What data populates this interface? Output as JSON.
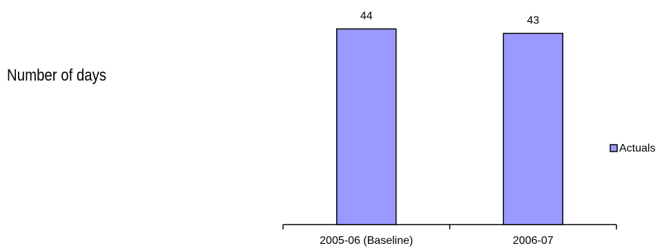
{
  "chart_data": {
    "type": "bar",
    "title": "",
    "xlabel": "",
    "ylabel": "Number of days",
    "categories": [
      "2005-06 (Baseline)",
      "2006-07"
    ],
    "series": [
      {
        "name": "Actuals",
        "values": [
          44,
          43
        ],
        "color": "#9999ff"
      }
    ],
    "data_labels": [
      "44",
      "43"
    ],
    "ylim": [
      0,
      44
    ],
    "grid": false,
    "legend": {
      "position": "right",
      "entries": [
        "Actuals"
      ]
    }
  }
}
